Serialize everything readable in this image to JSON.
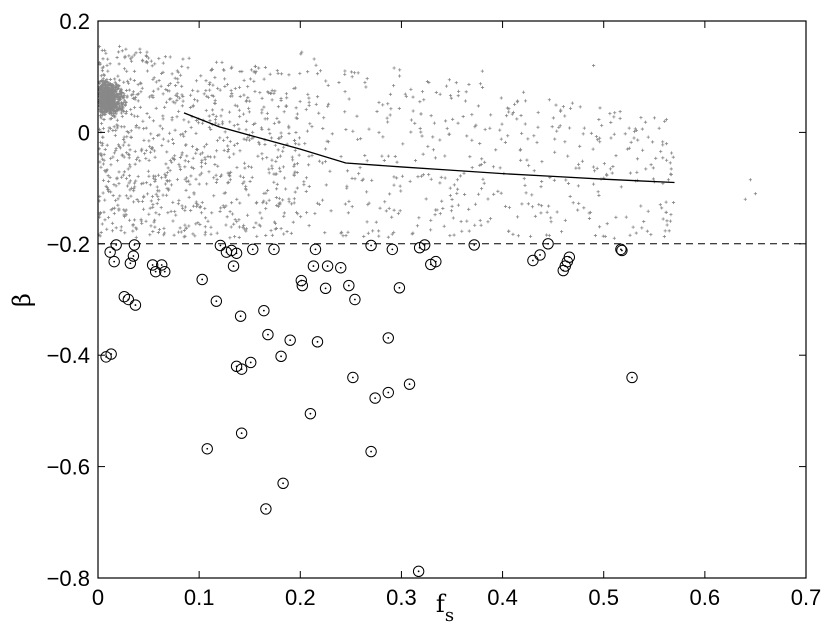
{
  "chart_data": {
    "type": "scatter",
    "xlabel": "f",
    "xlabel_subscript": "s",
    "ylabel": "β",
    "xlim": [
      0,
      0.7
    ],
    "ylim": [
      -0.8,
      0.2
    ],
    "x_ticks": [
      "0",
      "0.1",
      "0.2",
      "0.3",
      "0.4",
      "0.5",
      "0.6",
      "0.7"
    ],
    "y_ticks": [
      "0.2",
      "0",
      "−0.2",
      "−0.4",
      "−0.6",
      "−0.8"
    ],
    "grid": false,
    "legend": "none",
    "threshold_line": {
      "y": -0.2,
      "style": "dashed"
    },
    "trend_line": [
      [
        0.085,
        0.035
      ],
      [
        0.12,
        0.01
      ],
      [
        0.16,
        -0.01
      ],
      [
        0.2,
        -0.03
      ],
      [
        0.245,
        -0.055
      ],
      [
        0.3,
        -0.062
      ],
      [
        0.35,
        -0.068
      ],
      [
        0.4,
        -0.074
      ],
      [
        0.45,
        -0.079
      ],
      [
        0.5,
        -0.084
      ],
      [
        0.57,
        -0.09
      ]
    ],
    "circled_points": [
      [
        0.008,
        -0.403
      ],
      [
        0.013,
        -0.398
      ],
      [
        0.012,
        -0.215
      ],
      [
        0.016,
        -0.232
      ],
      [
        0.018,
        -0.202
      ],
      [
        0.026,
        -0.295
      ],
      [
        0.03,
        -0.3
      ],
      [
        0.032,
        -0.235
      ],
      [
        0.035,
        -0.222
      ],
      [
        0.036,
        -0.202
      ],
      [
        0.037,
        -0.31
      ],
      [
        0.054,
        -0.238
      ],
      [
        0.057,
        -0.25
      ],
      [
        0.063,
        -0.238
      ],
      [
        0.066,
        -0.25
      ],
      [
        0.103,
        -0.264
      ],
      [
        0.108,
        -0.568
      ],
      [
        0.117,
        -0.303
      ],
      [
        0.121,
        -0.203
      ],
      [
        0.127,
        -0.215
      ],
      [
        0.132,
        -0.212
      ],
      [
        0.134,
        -0.24
      ],
      [
        0.137,
        -0.42
      ],
      [
        0.137,
        -0.217
      ],
      [
        0.141,
        -0.33
      ],
      [
        0.142,
        -0.425
      ],
      [
        0.142,
        -0.54
      ],
      [
        0.151,
        -0.413
      ],
      [
        0.153,
        -0.21
      ],
      [
        0.164,
        -0.32
      ],
      [
        0.166,
        -0.676
      ],
      [
        0.168,
        -0.363
      ],
      [
        0.174,
        -0.21
      ],
      [
        0.181,
        -0.402
      ],
      [
        0.183,
        -0.63
      ],
      [
        0.19,
        -0.373
      ],
      [
        0.201,
        -0.266
      ],
      [
        0.202,
        -0.275
      ],
      [
        0.21,
        -0.505
      ],
      [
        0.213,
        -0.24
      ],
      [
        0.215,
        -0.21
      ],
      [
        0.217,
        -0.376
      ],
      [
        0.225,
        -0.28
      ],
      [
        0.227,
        -0.24
      ],
      [
        0.24,
        -0.243
      ],
      [
        0.248,
        -0.275
      ],
      [
        0.252,
        -0.44
      ],
      [
        0.254,
        -0.3
      ],
      [
        0.27,
        -0.573
      ],
      [
        0.27,
        -0.203
      ],
      [
        0.274,
        -0.477
      ],
      [
        0.287,
        -0.369
      ],
      [
        0.287,
        -0.467
      ],
      [
        0.291,
        -0.21
      ],
      [
        0.298,
        -0.279
      ],
      [
        0.308,
        -0.452
      ],
      [
        0.317,
        -0.788
      ],
      [
        0.318,
        -0.207
      ],
      [
        0.323,
        -0.202
      ],
      [
        0.329,
        -0.237
      ],
      [
        0.334,
        -0.232
      ],
      [
        0.372,
        -0.202
      ],
      [
        0.43,
        -0.23
      ],
      [
        0.437,
        -0.22
      ],
      [
        0.445,
        -0.2
      ],
      [
        0.46,
        -0.248
      ],
      [
        0.462,
        -0.24
      ],
      [
        0.464,
        -0.232
      ],
      [
        0.466,
        -0.224
      ],
      [
        0.517,
        -0.21
      ],
      [
        0.518,
        -0.212
      ],
      [
        0.528,
        -0.44
      ]
    ],
    "cloud": {
      "description_none": "",
      "dense_region": {
        "x": [
          0.0,
          0.06
        ],
        "y": [
          -0.05,
          0.15
        ],
        "count": 700
      },
      "mid_region": {
        "x": [
          0.0,
          0.2
        ],
        "y": [
          -0.19,
          0.17
        ],
        "count": 900
      },
      "sparse_region": {
        "x": [
          0.2,
          0.57
        ],
        "y": [
          -0.19,
          0.15
        ],
        "count": 480
      },
      "outliers": [
        [
          0.64,
          -0.12
        ],
        [
          0.645,
          -0.085
        ],
        [
          0.65,
          -0.11
        ],
        [
          0.38,
          0.11
        ],
        [
          0.49,
          0.12
        ],
        [
          0.135,
          0.2
        ]
      ]
    },
    "colors": {
      "points": "#888888",
      "circles": "#000000",
      "lines": "#000000"
    }
  }
}
